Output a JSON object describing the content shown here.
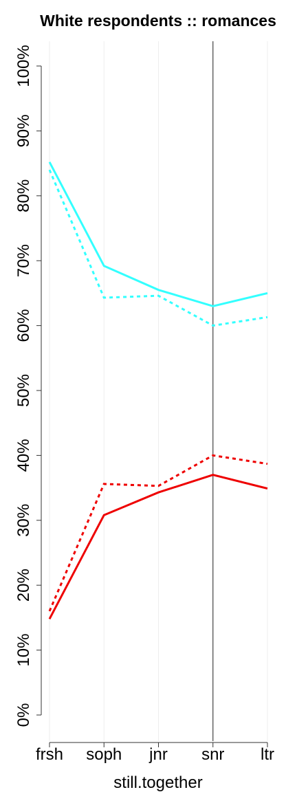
{
  "chart_data": {
    "type": "line",
    "title": "White respondents :: romances",
    "x_label": "still.together",
    "categories": [
      "frsh",
      "soph",
      "jnr",
      "snr",
      "ltr"
    ],
    "series": [
      {
        "color": "#33ffff",
        "dash": "solid",
        "values": [
          85.2,
          69.2,
          65.5,
          63.0,
          65.0
        ]
      },
      {
        "color": "#33ffff",
        "dash": "dotted",
        "values": [
          84.0,
          64.3,
          64.6,
          60.0,
          61.3
        ]
      },
      {
        "color": "#ee0000",
        "dash": "solid",
        "values": [
          14.8,
          30.8,
          34.3,
          37.0,
          34.9
        ]
      },
      {
        "color": "#ee0000",
        "dash": "dotted",
        "values": [
          16.0,
          35.6,
          35.3,
          40.0,
          38.7
        ]
      }
    ],
    "ylim": [
      0,
      100
    ],
    "yticks": [
      {
        "value": 0,
        "label": "0%"
      },
      {
        "value": 10,
        "label": "10%"
      },
      {
        "value": 20,
        "label": "20%"
      },
      {
        "value": 30,
        "label": "30%"
      },
      {
        "value": 40,
        "label": "40%"
      },
      {
        "value": 50,
        "label": "50%"
      },
      {
        "value": 60,
        "label": "60%"
      },
      {
        "value": 70,
        "label": "70%"
      },
      {
        "value": 80,
        "label": "80%"
      },
      {
        "value": 90,
        "label": "90%"
      },
      {
        "value": 100,
        "label": "100%"
      }
    ],
    "grid": true,
    "vline_at": "snr"
  }
}
